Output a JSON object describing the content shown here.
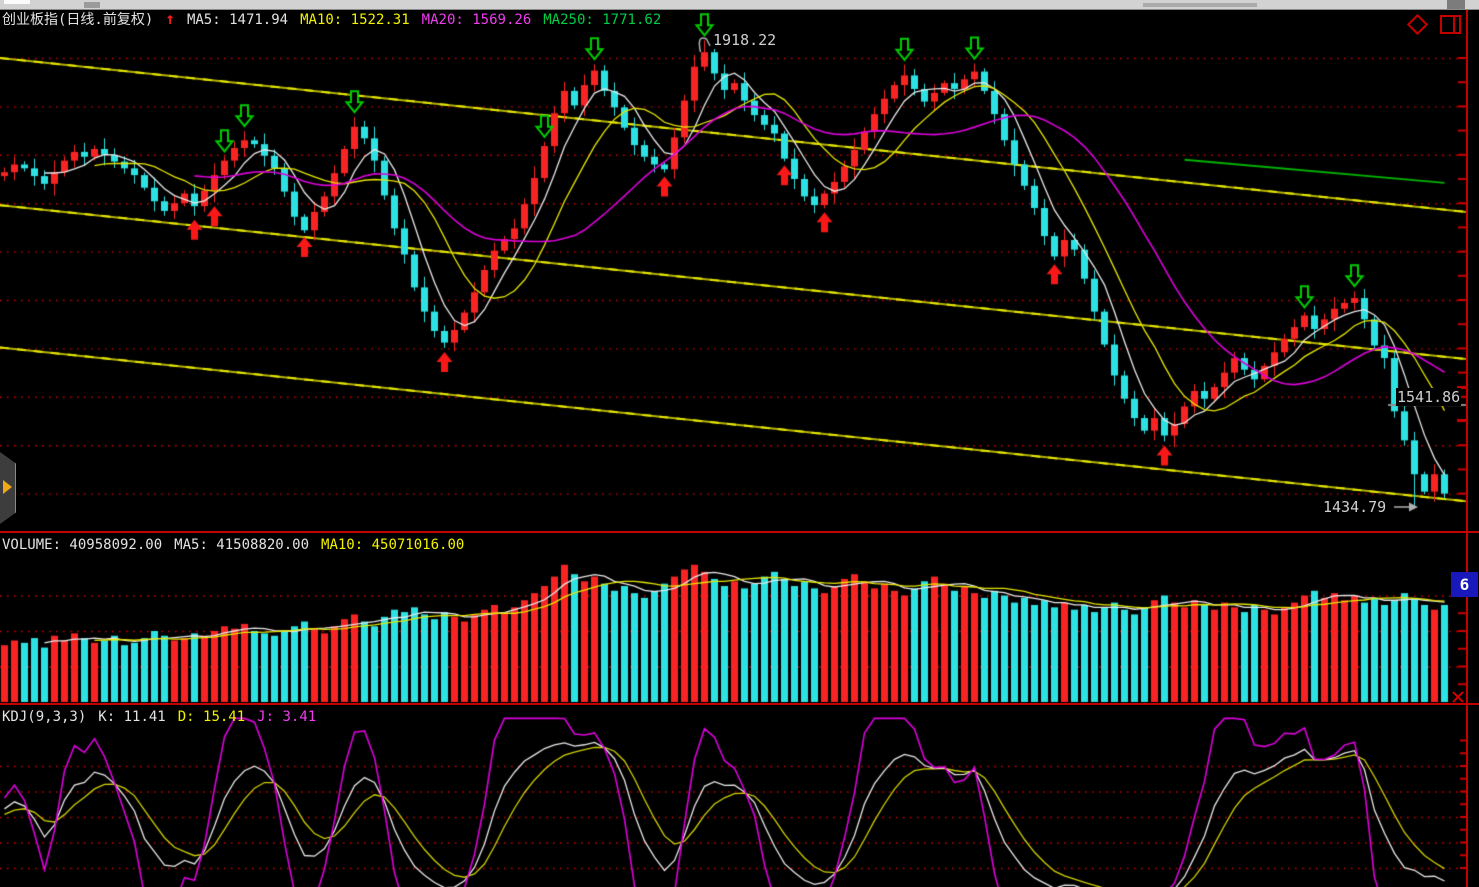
{
  "main_header": {
    "symbol": "创业板指(日线.前复权)",
    "arrow": "↑",
    "ma5": "MA5: 1471.94",
    "ma10": "MA10: 1522.31",
    "ma20": "MA20: 1569.26",
    "ma250": "MA250: 1771.62"
  },
  "volume_header": {
    "volume": "VOLUME: 40958092.00",
    "ma5": "MA5: 41508820.00",
    "ma10": "MA10: 45071016.00"
  },
  "kdj_header": {
    "name": "KDJ(9,3,3)",
    "k": "K: 11.41",
    "d": "D: 15.41",
    "j": "J: 3.41"
  },
  "annotations": {
    "peak": "1918.22",
    "price_line": "1541.86",
    "low": "1434.79"
  },
  "right_edge": {
    "volume_scale_badge": "6"
  },
  "colors": {
    "up": "#f82424",
    "down": "#2de2e2",
    "ma5": "#e8e8e8",
    "ma10": "#e6e600",
    "ma20": "#dc00dc",
    "ma250": "#00b400",
    "grid_dots": "#c80000",
    "trendline": "#b5b500",
    "trendline_bright": "#e8e800",
    "buy_arrow": "#f81818",
    "sell_arrow": "#00cc00",
    "volume_ma5": "#e8e8e8",
    "volume_ma10": "#e6e600",
    "kdj_k": "#e8e8e8",
    "kdj_d": "#cfcf00",
    "kdj_j": "#dc00dc",
    "annotation_gray": "#b0b0b0"
  },
  "chart_data": {
    "type": "candlestick",
    "title": "创业板指 daily chart with VOLUME and KDJ panels",
    "panels": [
      "price+MA",
      "volume+MA",
      "KDJ"
    ],
    "candles": {
      "closes": [
        1782,
        1790,
        1786,
        1778,
        1770,
        1782,
        1794,
        1803,
        1798,
        1806,
        1800,
        1793,
        1786,
        1779,
        1766,
        1752,
        1742,
        1750,
        1760,
        1747,
        1763,
        1779,
        1794,
        1807,
        1815,
        1811,
        1799,
        1786,
        1762,
        1736,
        1722,
        1741,
        1757,
        1781,
        1806,
        1829,
        1817,
        1794,
        1758,
        1724,
        1697,
        1663,
        1638,
        1618,
        1606,
        1619,
        1637,
        1658,
        1681,
        1701,
        1713,
        1724,
        1749,
        1776,
        1809,
        1843,
        1866,
        1851,
        1872,
        1887,
        1866,
        1849,
        1828,
        1810,
        1798,
        1790,
        1785,
        1818,
        1856,
        1891,
        1906,
        1884,
        1867,
        1874,
        1856,
        1841,
        1831,
        1822,
        1796,
        1775,
        1757,
        1748,
        1760,
        1772,
        1788,
        1805,
        1824,
        1842,
        1858,
        1872,
        1882,
        1868,
        1855,
        1864,
        1874,
        1868,
        1878,
        1886,
        1866,
        1842,
        1815,
        1790,
        1768,
        1745,
        1716,
        1695,
        1712,
        1702,
        1672,
        1638,
        1604,
        1572,
        1548,
        1528,
        1515,
        1528,
        1510,
        1522,
        1540,
        1556,
        1548,
        1560,
        1575,
        1590,
        1578,
        1568,
        1582,
        1596,
        1610,
        1622,
        1634,
        1620,
        1630,
        1641,
        1647,
        1652,
        1630,
        1603,
        1590,
        1535,
        1505,
        1470,
        1452,
        1470,
        1450
      ],
      "volumes_e7": [
        2.4,
        2.6,
        2.5,
        2.7,
        2.3,
        2.8,
        2.6,
        2.9,
        2.7,
        2.5,
        2.6,
        2.8,
        2.4,
        2.5,
        2.7,
        3.0,
        2.8,
        2.6,
        2.7,
        2.9,
        2.8,
        3.0,
        3.2,
        3.1,
        3.3,
        3.0,
        2.9,
        2.8,
        3.0,
        3.2,
        3.4,
        3.1,
        2.9,
        3.2,
        3.5,
        3.7,
        3.4,
        3.2,
        3.6,
        3.9,
        3.8,
        4.0,
        3.7,
        3.5,
        3.8,
        3.6,
        3.4,
        3.7,
        3.9,
        4.1,
        3.8,
        4.0,
        4.3,
        4.6,
        4.9,
        5.3,
        5.8,
        5.4,
        5.1,
        5.3,
        5.0,
        4.7,
        4.9,
        4.6,
        4.4,
        4.7,
        5.0,
        5.3,
        5.6,
        5.8,
        5.5,
        5.2,
        4.9,
        5.1,
        4.8,
        5.0,
        5.3,
        5.5,
        5.2,
        4.9,
        5.1,
        4.8,
        4.6,
        4.9,
        5.2,
        5.4,
        5.1,
        4.8,
        5.0,
        4.7,
        4.5,
        4.8,
        5.1,
        5.3,
        5.0,
        4.7,
        4.9,
        4.6,
        4.4,
        4.7,
        4.5,
        4.2,
        4.4,
        4.1,
        4.3,
        4.0,
        4.2,
        3.9,
        4.1,
        3.8,
        4.0,
        4.2,
        3.9,
        3.7,
        4.0,
        4.3,
        4.5,
        4.2,
        4.0,
        4.3,
        4.1,
        3.9,
        4.2,
        4.0,
        3.8,
        4.1,
        3.9,
        3.7,
        4.0,
        4.2,
        4.5,
        4.7,
        4.4,
        4.6,
        4.3,
        4.5,
        4.2,
        4.4,
        4.1,
        4.3,
        4.6,
        4.4,
        4.1,
        3.9,
        4.1
      ],
      "wick_pattern_pts": [
        9,
        15,
        6,
        18,
        11,
        22,
        8,
        13,
        17,
        7,
        20,
        12,
        10,
        16,
        5,
        19
      ],
      "peak": {
        "index": 70,
        "high": 1918.22
      },
      "trough": {
        "index": 141,
        "low": 1434.79
      }
    },
    "indicators": {
      "ma_periods": [
        5,
        10,
        20
      ],
      "ma250_segment": {
        "from_index": 118,
        "from_value": 1795,
        "to_index": 144,
        "to_value": 1771
      },
      "volume_ma_periods": [
        5,
        10
      ],
      "kdj_params": [
        9,
        3,
        3
      ]
    },
    "signals": {
      "buy_indices": [
        19,
        21,
        30,
        44,
        66,
        78,
        82,
        105,
        116
      ],
      "sell_indices": [
        22,
        24,
        35,
        54,
        59,
        70,
        90,
        97,
        130,
        135
      ]
    },
    "grid": {
      "main_prices": [
        1900,
        1850,
        1800,
        1750,
        1700,
        1650,
        1600,
        1550,
        1500,
        1450
      ],
      "volume_levels_e7": [
        1.5,
        3.0,
        4.5
      ],
      "volume_scale_max_e7": 6.0,
      "kdj_levels": [
        20,
        35,
        50,
        65,
        80
      ]
    },
    "trendlines": [
      {
        "price1": 1900,
        "price2": 1741
      },
      {
        "price1": 1748,
        "price2": 1589
      },
      {
        "price1": 1601,
        "price2": 1442
      }
    ],
    "price_marker": {
      "value": 1541.86
    },
    "axis": {
      "ylim_main": [
        1408,
        1952
      ],
      "ylim_kdj": [
        0,
        100
      ],
      "grid": "red-dotted"
    }
  }
}
